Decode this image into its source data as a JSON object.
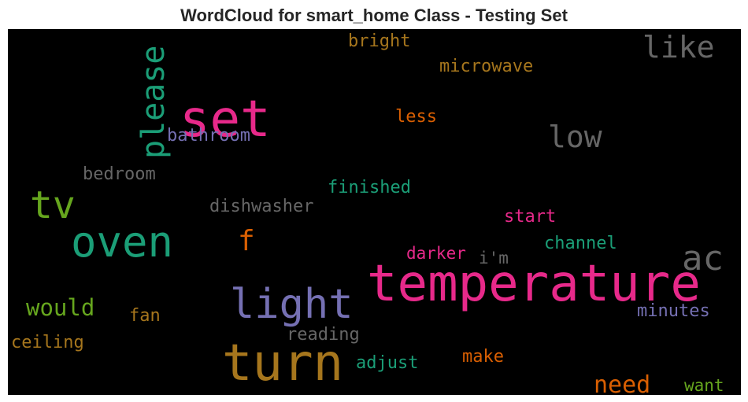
{
  "title": "WordCloud for smart_home Class - Testing Set",
  "background_color": "#000000",
  "words": [
    {
      "text": "temperature",
      "color": "#e7298a"
    },
    {
      "text": "turn",
      "color": "#a6761d"
    },
    {
      "text": "set",
      "color": "#e7298a"
    },
    {
      "text": "oven",
      "color": "#1b9e77"
    },
    {
      "text": "light",
      "color": "#7570b3"
    },
    {
      "text": "please",
      "color": "#1b9e77"
    },
    {
      "text": "tv",
      "color": "#66a61e"
    },
    {
      "text": "ac",
      "color": "#666666"
    },
    {
      "text": "like",
      "color": "#666666"
    },
    {
      "text": "low",
      "color": "#666666"
    },
    {
      "text": "f",
      "color": "#d95f02"
    },
    {
      "text": "need",
      "color": "#d95f02"
    },
    {
      "text": "would",
      "color": "#66a61e"
    },
    {
      "text": "bathroom",
      "color": "#7570b3"
    },
    {
      "text": "microwave",
      "color": "#a6761d"
    },
    {
      "text": "bright",
      "color": "#a6761d"
    },
    {
      "text": "less",
      "color": "#d95f02"
    },
    {
      "text": "bedroom",
      "color": "#666666"
    },
    {
      "text": "finished",
      "color": "#1b9e77"
    },
    {
      "text": "dishwasher",
      "color": "#666666"
    },
    {
      "text": "start",
      "color": "#e7298a"
    },
    {
      "text": "channel",
      "color": "#1b9e77"
    },
    {
      "text": "darker",
      "color": "#e7298a"
    },
    {
      "text": "i'm",
      "color": "#666666"
    },
    {
      "text": "fan",
      "color": "#a6761d"
    },
    {
      "text": "minutes",
      "color": "#7570b3"
    },
    {
      "text": "reading",
      "color": "#666666"
    },
    {
      "text": "ceiling",
      "color": "#a6761d"
    },
    {
      "text": "adjust",
      "color": "#1b9e77"
    },
    {
      "text": "make",
      "color": "#d95f02"
    },
    {
      "text": "want",
      "color": "#66a61e"
    }
  ]
}
